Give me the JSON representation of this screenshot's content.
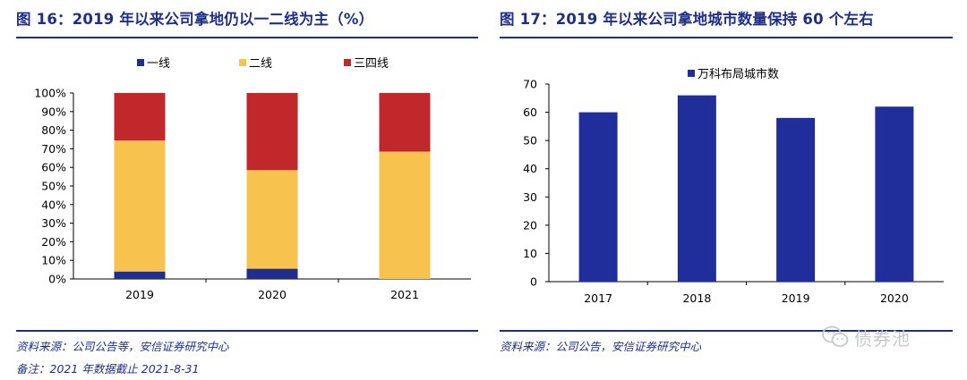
{
  "left_panel": {
    "title": "图 16：2019 年以来公司拿地仍以一二线为主（%）",
    "source": "资料来源：公司公告等，安信证券研究中心",
    "note": "备注：2021 年数据截止 2021-8-31"
  },
  "right_panel": {
    "title": "图 17：2019 年以来公司拿地城市数量保持 60 个左右",
    "source": "资料来源：公司公告，安信证券研究中心"
  },
  "watermark": {
    "text": "债券池",
    "icon": "wechat-icon"
  },
  "colors": {
    "tier1": "#1f2e8f",
    "tier2": "#f8c24e",
    "tier34": "#c0282c",
    "bar": "#1f2e9a",
    "rule": "#1e2f86"
  },
  "chart_data": [
    {
      "type": "bar",
      "stacked": true,
      "title": "2019 年以来公司拿地仍以一二线为主（%）",
      "categories": [
        "2019",
        "2020",
        "2021"
      ],
      "series": [
        {
          "name": "一线",
          "values": [
            4,
            5.5,
            0
          ]
        },
        {
          "name": "二线",
          "values": [
            70.5,
            53,
            68.5
          ]
        },
        {
          "name": "三四线",
          "values": [
            25.5,
            41.5,
            31.5
          ]
        }
      ],
      "ylim": [
        0,
        100
      ],
      "yticks": [
        "0%",
        "10%",
        "20%",
        "30%",
        "40%",
        "50%",
        "60%",
        "70%",
        "80%",
        "90%",
        "100%"
      ],
      "legend": "top",
      "grid": false
    },
    {
      "type": "bar",
      "title": "2019 年以来公司拿地城市数量保持 60 个左右",
      "categories": [
        "2017",
        "2018",
        "2019",
        "2020"
      ],
      "series": [
        {
          "name": "万科布局城市数",
          "values": [
            60,
            66,
            58,
            62
          ]
        }
      ],
      "ylim": [
        0,
        70
      ],
      "yticks": [
        "0",
        "10",
        "20",
        "30",
        "40",
        "50",
        "60",
        "70"
      ],
      "legend": "top-left",
      "grid": false
    }
  ]
}
